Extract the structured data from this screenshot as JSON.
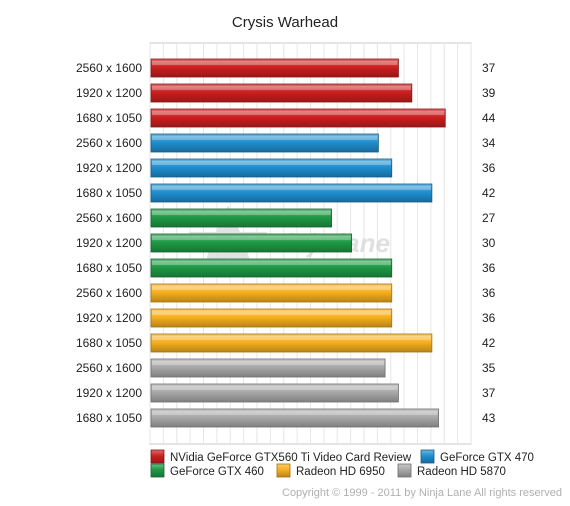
{
  "chart_data": {
    "type": "bar",
    "orientation": "horizontal",
    "title": "Crysis Warhead",
    "categories": [
      "2560 x 1600",
      "1920 x 1200",
      "1680 x 1050"
    ],
    "series": [
      {
        "name": "NVidia GeForce GTX560 Ti Video Card Review",
        "color": "#cc1f1f",
        "values": [
          37,
          39,
          44
        ]
      },
      {
        "name": "GeForce GTX 470",
        "color": "#1f8fd0",
        "values": [
          34,
          36,
          42
        ]
      },
      {
        "name": "GeForce GTX 460",
        "color": "#1e9a45",
        "values": [
          27,
          30,
          36
        ]
      },
      {
        "name": "Radeon HD 6950",
        "color": "#f7b01e",
        "values": [
          36,
          36,
          42
        ]
      },
      {
        "name": "Radeon HD 5870",
        "color": "#a9a9a9",
        "values": [
          35,
          37,
          43
        ]
      }
    ],
    "xlim": [
      0,
      48
    ],
    "grid": true,
    "legend_position": "bottom"
  },
  "footer": {
    "copyright": "Copyright © 1999 - 2011 by Ninja Lane All rights reserved"
  },
  "watermark_text": "ninja lane"
}
